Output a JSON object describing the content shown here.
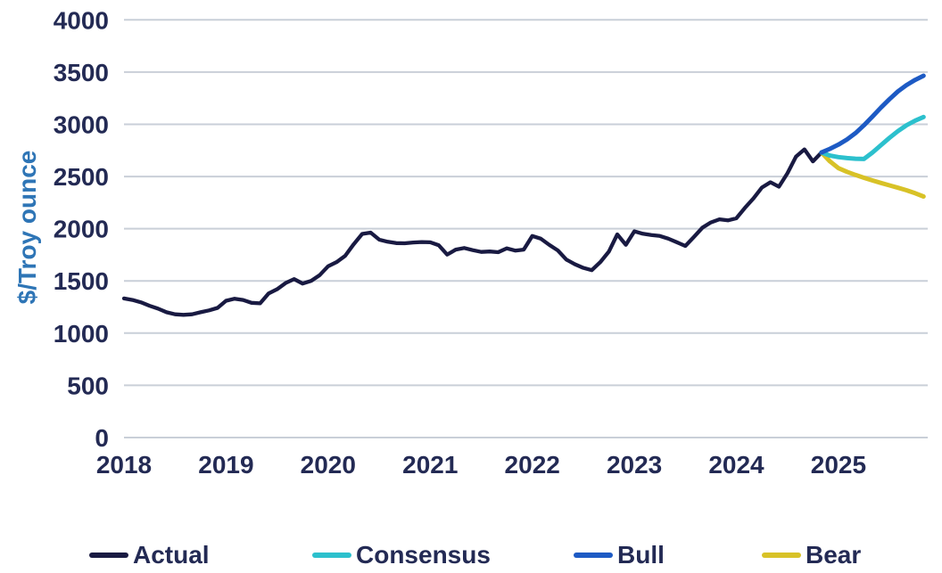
{
  "colors": {
    "background": "#FFFFFF",
    "gridline": "#C9CFD8",
    "tick_text": "#232A54",
    "y_axis_title": "#2E75B6",
    "actual": "#191A42",
    "consensus": "#2CC0CD",
    "bull": "#1D5AC4",
    "bear": "#D8C227"
  },
  "chart_data": {
    "type": "line",
    "title": "",
    "xlabel": "",
    "ylabel": "$/Troy ounce",
    "ylim": [
      0,
      4000
    ],
    "ytick_step": 500,
    "y_ticks": [
      4000,
      3500,
      3000,
      2500,
      2000,
      1500,
      1000,
      500,
      0
    ],
    "x_ticks": [
      2018,
      2019,
      2020,
      2021,
      2022,
      2023,
      2024,
      2025
    ],
    "grid": "horizontal-only",
    "legend_position": "bottom",
    "x_unit": "months since Jan 2018, monthly points",
    "junction_note": "Consensus/Bull/Bear forecasts branch from last Actual value 2730 in late 2024",
    "series": [
      {
        "name": "Actual",
        "color": "#191A42",
        "stroke_width": 4.3,
        "start_index": 0,
        "values": [
          1332,
          1318,
          1295,
          1262,
          1235,
          1200,
          1180,
          1175,
          1180,
          1200,
          1218,
          1242,
          1310,
          1330,
          1318,
          1290,
          1285,
          1380,
          1420,
          1480,
          1517,
          1475,
          1500,
          1555,
          1640,
          1680,
          1740,
          1850,
          1950,
          1963,
          1895,
          1875,
          1862,
          1860,
          1868,
          1872,
          1870,
          1842,
          1752,
          1800,
          1815,
          1795,
          1778,
          1782,
          1775,
          1812,
          1790,
          1800,
          1930,
          1905,
          1845,
          1792,
          1705,
          1660,
          1625,
          1603,
          1680,
          1780,
          1946,
          1846,
          1975,
          1952,
          1940,
          1930,
          1905,
          1870,
          1835,
          1920,
          2010,
          2060,
          2090,
          2080,
          2100,
          2200,
          2290,
          2395,
          2445,
          2402,
          2530,
          2690,
          2760,
          2645,
          2730
        ]
      },
      {
        "name": "Consensus",
        "color": "#2CC0CD",
        "stroke_width": 5,
        "start_index": 82,
        "values": [
          2730,
          2700,
          2686,
          2676,
          2670,
          2668,
          2730,
          2800,
          2870,
          2935,
          2990,
          3035,
          3070
        ]
      },
      {
        "name": "Bull",
        "color": "#1D5AC4",
        "stroke_width": 5,
        "start_index": 82,
        "values": [
          2730,
          2765,
          2805,
          2855,
          2915,
          2990,
          3075,
          3160,
          3240,
          3315,
          3375,
          3425,
          3465
        ]
      },
      {
        "name": "Bear",
        "color": "#D8C227",
        "stroke_width": 5,
        "start_index": 82,
        "values": [
          2730,
          2645,
          2580,
          2545,
          2515,
          2488,
          2462,
          2438,
          2415,
          2392,
          2368,
          2340,
          2308
        ]
      }
    ]
  },
  "legend": {
    "items": [
      "Actual",
      "Consensus",
      "Bull",
      "Bear"
    ]
  }
}
